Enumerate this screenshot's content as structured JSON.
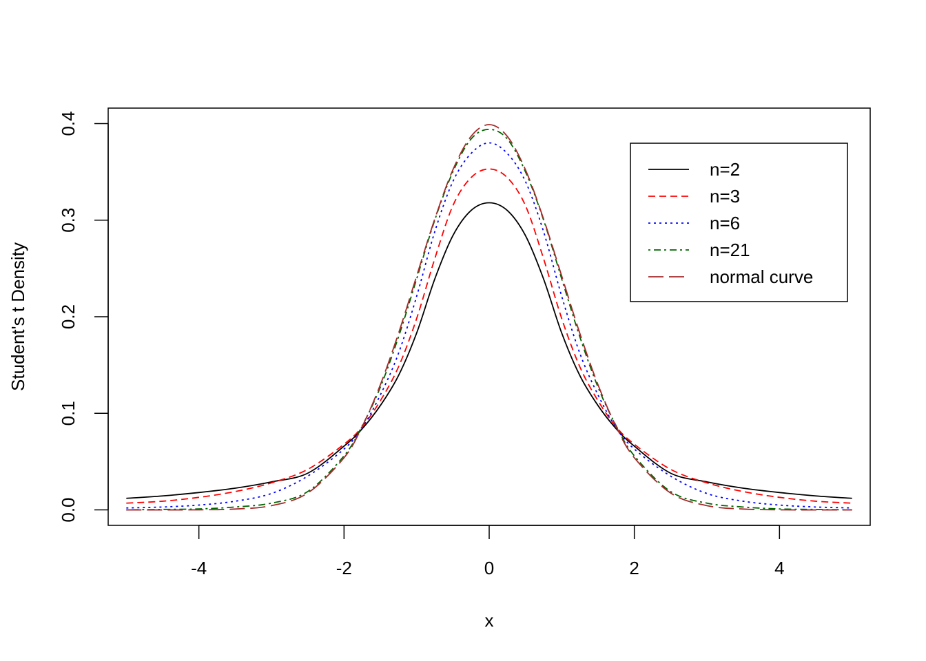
{
  "chart_data": {
    "type": "line",
    "title": "",
    "xlabel": "x",
    "ylabel": "Student's t Density",
    "xlim": [
      -5.25,
      5.25
    ],
    "ylim": [
      -0.016,
      0.416
    ],
    "grid": false,
    "legend_position": "top-right",
    "x_ticks": [
      -4,
      -2,
      0,
      2,
      4
    ],
    "x_tick_labels": [
      "-4",
      "-2",
      "0",
      "2",
      "4"
    ],
    "y_ticks": [
      0.0,
      0.1,
      0.2,
      0.3,
      0.4
    ],
    "y_tick_labels": [
      "0.0",
      "0.1",
      "0.2",
      "0.3",
      "0.4"
    ],
    "x": [
      -5,
      -4.5,
      -4,
      -3.5,
      -3,
      -2.5,
      -2,
      -1.75,
      -1.5,
      -1.25,
      -1,
      -0.75,
      -0.5,
      -0.25,
      0,
      0.25,
      0.5,
      0.75,
      1,
      1.25,
      1.5,
      1.75,
      2,
      2.5,
      3,
      3.5,
      4,
      4.5,
      5
    ],
    "series": [
      {
        "name": "n=2",
        "color": "#000000",
        "dash": "solid",
        "values": [
          0.012,
          0.0145,
          0.018,
          0.0225,
          0.029,
          0.038,
          0.066,
          0.084,
          0.108,
          0.139,
          0.183,
          0.239,
          0.284,
          0.31,
          0.318,
          0.31,
          0.284,
          0.239,
          0.183,
          0.139,
          0.108,
          0.084,
          0.066,
          0.038,
          0.029,
          0.0225,
          0.018,
          0.0145,
          0.012
        ]
      },
      {
        "name": "n=3",
        "color": "#ff0000",
        "dash": "dashed",
        "values": [
          0.007,
          0.009,
          0.013,
          0.019,
          0.028,
          0.042,
          0.068,
          0.086,
          0.113,
          0.148,
          0.198,
          0.26,
          0.315,
          0.344,
          0.353,
          0.344,
          0.315,
          0.26,
          0.198,
          0.148,
          0.113,
          0.086,
          0.068,
          0.042,
          0.028,
          0.019,
          0.013,
          0.009,
          0.007
        ]
      },
      {
        "name": "n=6",
        "color": "#0000ff",
        "dash": "dotted",
        "values": [
          0.002,
          0.003,
          0.005,
          0.009,
          0.017,
          0.035,
          0.063,
          0.085,
          0.119,
          0.162,
          0.221,
          0.288,
          0.34,
          0.369,
          0.38,
          0.369,
          0.34,
          0.288,
          0.221,
          0.162,
          0.119,
          0.085,
          0.063,
          0.035,
          0.017,
          0.009,
          0.005,
          0.003,
          0.002
        ]
      },
      {
        "name": "n=21",
        "color": "#006400",
        "dash": "dotdash",
        "values": [
          0.0,
          0.0005,
          0.001,
          0.003,
          0.007,
          0.019,
          0.056,
          0.087,
          0.127,
          0.179,
          0.239,
          0.3,
          0.35,
          0.384,
          0.394,
          0.384,
          0.35,
          0.3,
          0.239,
          0.179,
          0.127,
          0.087,
          0.056,
          0.019,
          0.007,
          0.003,
          0.001,
          0.0005,
          0.0
        ]
      },
      {
        "name": "normal curve",
        "color": "#a52a2a",
        "dash": "longdash",
        "values": [
          0.0,
          0.0,
          0.0001,
          0.0009,
          0.0044,
          0.0175,
          0.054,
          0.0863,
          0.1295,
          0.1826,
          0.242,
          0.3011,
          0.3521,
          0.3867,
          0.3989,
          0.3867,
          0.3521,
          0.3011,
          0.242,
          0.1826,
          0.1295,
          0.0863,
          0.054,
          0.0175,
          0.0044,
          0.0009,
          0.0001,
          0.0,
          0.0
        ]
      }
    ]
  }
}
